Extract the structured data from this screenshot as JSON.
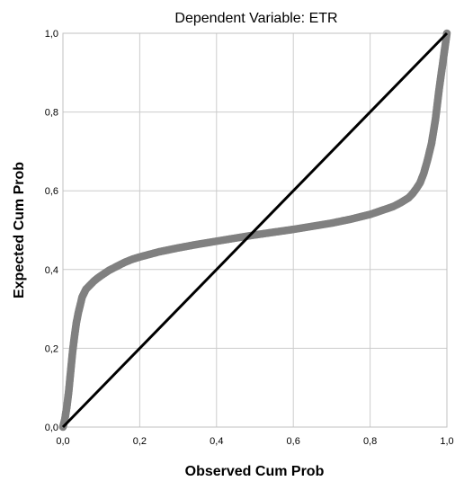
{
  "chart_data": {
    "type": "scatter",
    "title": "Dependent Variable: ETR",
    "xlabel": "Observed Cum Prob",
    "ylabel": "Expected Cum Prob",
    "xlim": [
      0,
      1
    ],
    "ylim": [
      0,
      1
    ],
    "x_ticks": [
      "0,0",
      "0,2",
      "0,4",
      "0,6",
      "0,8",
      "1,0"
    ],
    "y_ticks": [
      "0,0",
      "0,2",
      "0,4",
      "0,6",
      "0,8",
      "1,0"
    ],
    "grid": true,
    "legend": "none",
    "reference_line": {
      "x": [
        0,
        1
      ],
      "y": [
        0,
        1
      ],
      "color": "#000000"
    },
    "point_color": "#808080",
    "series_curve": {
      "observed": [
        0.0,
        0.005,
        0.01,
        0.015,
        0.02,
        0.025,
        0.03,
        0.035,
        0.04,
        0.045,
        0.05,
        0.06,
        0.07,
        0.08,
        0.09,
        0.1,
        0.12,
        0.14,
        0.16,
        0.18,
        0.2,
        0.25,
        0.3,
        0.35,
        0.4,
        0.45,
        0.5,
        0.55,
        0.6,
        0.65,
        0.7,
        0.75,
        0.8,
        0.83,
        0.86,
        0.88,
        0.9,
        0.91,
        0.92,
        0.93,
        0.94,
        0.95,
        0.96,
        0.97,
        0.98,
        0.99,
        1.0
      ],
      "expected": [
        0.0,
        0.02,
        0.05,
        0.09,
        0.14,
        0.19,
        0.23,
        0.265,
        0.29,
        0.31,
        0.33,
        0.35,
        0.36,
        0.37,
        0.378,
        0.385,
        0.398,
        0.408,
        0.418,
        0.426,
        0.432,
        0.445,
        0.455,
        0.464,
        0.472,
        0.48,
        0.488,
        0.495,
        0.502,
        0.51,
        0.518,
        0.528,
        0.54,
        0.55,
        0.56,
        0.57,
        0.582,
        0.592,
        0.605,
        0.62,
        0.645,
        0.68,
        0.72,
        0.78,
        0.86,
        0.93,
        1.0
      ]
    }
  }
}
